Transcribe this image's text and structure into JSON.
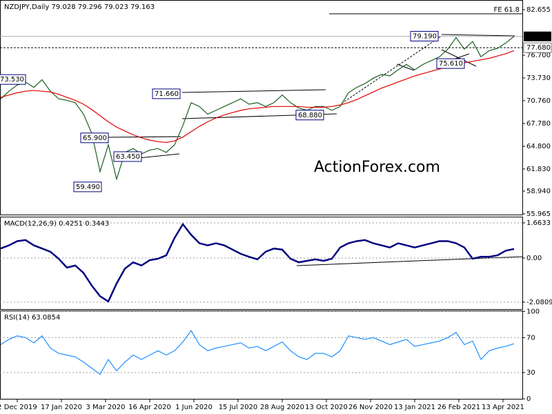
{
  "chart_data": [
    {
      "type": "line",
      "title": "NZDJPY,Daily  79.028 79.296 79.023 79.163",
      "watermark": "ActionForex.com",
      "xlim": [
        -12.5,
        366
      ],
      "ylim": [
        55.87,
        83.92
      ],
      "yticks": [
        82.655,
        {
          "value": 76.7,
          "label": "76.700"
        },
        {
          "value": 73.73,
          "label": "73.730"
        },
        {
          "value": 70.76,
          "label": "70.760"
        },
        {
          "value": 67.78,
          "label": "67.780"
        },
        {
          "value": 64.8,
          "label": "64.800"
        },
        {
          "value": 61.83,
          "label": "61.830"
        },
        {
          "value": 58.94,
          "label": "58.940"
        },
        55.965
      ],
      "last_price": 79.163,
      "level": {
        "value": 77.68,
        "label": "77.680"
      },
      "fe_line": {
        "label": "FE 61.8",
        "value": 82.12,
        "x": 226
      },
      "annotations": [
        {
          "label": "73.530",
          "value": 73.53,
          "x": -14
        },
        {
          "label": "71.660",
          "value": 71.66,
          "x": 98
        },
        {
          "label": "65.900",
          "value": 65.9,
          "x": 46
        },
        {
          "label": "63.450",
          "value": 63.45,
          "x": 70
        },
        {
          "label": "59.490",
          "value": 59.49,
          "x": 41
        },
        {
          "label": "68.880",
          "value": 68.88,
          "x": 202
        },
        {
          "label": "79.190",
          "value": 79.19,
          "x": 285
        },
        {
          "label": "75.610",
          "value": 75.61,
          "x": 304
        }
      ],
      "x": [
        -12,
        -6,
        0,
        6,
        12,
        18,
        24,
        30,
        36,
        42,
        48,
        54,
        60,
        66,
        72,
        78,
        84,
        90,
        96,
        102,
        108,
        114,
        120,
        126,
        132,
        138,
        144,
        150,
        156,
        162,
        168,
        174,
        180,
        186,
        192,
        198,
        204,
        210,
        216,
        222,
        228,
        234,
        240,
        246,
        252,
        258,
        264,
        270,
        276,
        282,
        288,
        294,
        300,
        306,
        312,
        318,
        324,
        330,
        336,
        342,
        348,
        354,
        360
      ],
      "series": [
        {
          "name": "NZDJPY",
          "color": "#1b5e20",
          "values": [
            71.0,
            72.0,
            72.8,
            73.2,
            72.5,
            73.5,
            72.0,
            71.0,
            70.8,
            70.5,
            69.0,
            66.5,
            61.5,
            65.0,
            60.5,
            64.0,
            64.5,
            63.8,
            64.3,
            64.5,
            64.0,
            65.0,
            67.5,
            70.5,
            70.0,
            69.0,
            69.5,
            70.0,
            70.5,
            71.0,
            70.3,
            70.5,
            70.0,
            70.5,
            71.5,
            70.5,
            69.8,
            69.5,
            70.0,
            70.0,
            69.5,
            70.0,
            71.8,
            72.5,
            73.0,
            73.7,
            74.2,
            74.0,
            74.8,
            75.5,
            74.8,
            75.5,
            76.0,
            76.5,
            77.5,
            79.0,
            77.5,
            78.5,
            76.5,
            77.3,
            77.6,
            78.3,
            79.16
          ]
        },
        {
          "name": "MA",
          "color": "#e00000",
          "values": [
            71.2,
            71.5,
            71.8,
            72.0,
            72.1,
            72.0,
            71.9,
            71.6,
            71.2,
            70.8,
            70.3,
            69.6,
            68.8,
            68.0,
            67.3,
            66.8,
            66.3,
            65.9,
            65.6,
            65.4,
            65.3,
            65.5,
            66.0,
            66.7,
            67.4,
            68.0,
            68.5,
            68.9,
            69.2,
            69.5,
            69.7,
            69.8,
            69.9,
            70.0,
            70.0,
            70.0,
            70.0,
            69.9,
            69.9,
            69.9,
            70.0,
            70.2,
            70.5,
            70.9,
            71.4,
            71.9,
            72.4,
            72.8,
            73.2,
            73.6,
            74.0,
            74.3,
            74.6,
            74.9,
            75.2,
            75.5,
            75.7,
            75.9,
            76.1,
            76.3,
            76.6,
            76.9,
            77.3
          ]
        }
      ]
    },
    {
      "type": "line",
      "title": "MACD(12,26,9) 0.4251 0.3443",
      "xlim": [
        -12.5,
        366
      ],
      "ylim": [
        -2.41,
        1.955
      ],
      "yticks": [
        1.6633,
        {
          "value": 0,
          "label": "0.00"
        },
        -2.0809
      ],
      "x": [
        -12,
        -6,
        0,
        6,
        12,
        18,
        24,
        30,
        36,
        42,
        48,
        54,
        60,
        66,
        72,
        78,
        84,
        90,
        96,
        102,
        108,
        114,
        120,
        126,
        132,
        138,
        144,
        150,
        156,
        162,
        168,
        174,
        180,
        186,
        192,
        198,
        204,
        210,
        216,
        222,
        228,
        234,
        240,
        246,
        252,
        258,
        264,
        270,
        276,
        282,
        288,
        294,
        300,
        306,
        312,
        318,
        324,
        330,
        336,
        342,
        348,
        354,
        360
      ],
      "series": [
        {
          "name": "MACD",
          "color": "#000080",
          "values": [
            0.45,
            0.6,
            0.8,
            0.85,
            0.6,
            0.45,
            0.3,
            -0.03,
            -0.45,
            -0.35,
            -0.7,
            -1.3,
            -1.8,
            -2.05,
            -1.2,
            -0.5,
            -0.2,
            -0.35,
            -0.1,
            -0.03,
            0.13,
            0.95,
            1.6,
            1.1,
            0.7,
            0.6,
            0.7,
            0.6,
            0.4,
            0.2,
            0.06,
            -0.06,
            0.3,
            0.45,
            0.4,
            -0.03,
            -0.2,
            -0.13,
            -0.06,
            -0.13,
            -0.03,
            0.5,
            0.7,
            0.8,
            0.85,
            0.7,
            0.6,
            0.5,
            0.7,
            0.6,
            0.5,
            0.6,
            0.7,
            0.8,
            0.8,
            0.7,
            0.5,
            -0.03,
            0.06,
            0.06,
            0.13,
            0.35,
            0.43
          ]
        }
      ]
    },
    {
      "type": "line",
      "title": "RSI(14) 63.0854",
      "xlim": [
        -12.5,
        366
      ],
      "ylim": [
        0,
        101
      ],
      "yticks": [
        100,
        70,
        30,
        0
      ],
      "xticks": [
        {
          "value": 0,
          "label": "2 Dec 2019"
        },
        {
          "value": 32,
          "label": "17 Jan 2020"
        },
        {
          "value": 64,
          "label": "3 Mar 2020"
        },
        {
          "value": 96,
          "label": "16 Apr 2020"
        },
        {
          "value": 128,
          "label": "1 Jun 2020"
        },
        {
          "value": 160,
          "label": "15 Jul 2020"
        },
        {
          "value": 192,
          "label": "28 Aug 2020"
        },
        {
          "value": 224,
          "label": "13 Oct 2020"
        },
        {
          "value": 256,
          "label": "26 Nov 2020"
        },
        {
          "value": 288,
          "label": "13 Jan 2021"
        },
        {
          "value": 320,
          "label": "26 Feb 2021"
        },
        {
          "value": 352,
          "label": "13 Apr 2021"
        }
      ],
      "x": [
        -12,
        -6,
        0,
        6,
        12,
        18,
        24,
        30,
        36,
        42,
        48,
        54,
        60,
        66,
        72,
        78,
        84,
        90,
        96,
        102,
        108,
        114,
        120,
        126,
        132,
        138,
        144,
        150,
        156,
        162,
        168,
        174,
        180,
        186,
        192,
        198,
        204,
        210,
        216,
        222,
        228,
        234,
        240,
        246,
        252,
        258,
        264,
        270,
        276,
        282,
        288,
        294,
        300,
        306,
        312,
        318,
        324,
        330,
        336,
        342,
        348,
        354,
        360
      ],
      "series": [
        {
          "name": "RSI",
          "color": "#1e90ff",
          "values": [
            62,
            68,
            72,
            70,
            64,
            72,
            58,
            52,
            50,
            48,
            42,
            35,
            28,
            45,
            32,
            42,
            50,
            45,
            50,
            55,
            50,
            55,
            65,
            78,
            62,
            55,
            58,
            60,
            62,
            64,
            58,
            60,
            55,
            60,
            65,
            55,
            48,
            45,
            52,
            52,
            48,
            55,
            72,
            70,
            68,
            70,
            66,
            62,
            65,
            68,
            60,
            62,
            64,
            66,
            70,
            76,
            62,
            66,
            45,
            55,
            58,
            60,
            63.09
          ]
        }
      ]
    }
  ]
}
